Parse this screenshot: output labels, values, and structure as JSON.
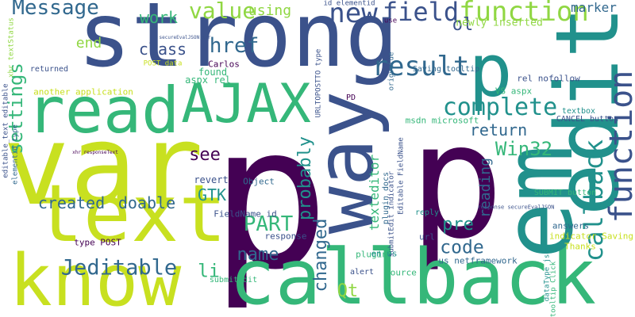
{
  "palette": {
    "background": "#ffffff",
    "dark_purple": "#440154",
    "indigo": "#3b528b",
    "blue": "#31688e",
    "teal": "#21918c",
    "green": "#35b779",
    "lime": "#90d743",
    "yellow": "#c8e020"
  },
  "words": [
    {
      "id": "strong",
      "text": "strong",
      "color": "#3b528b"
    },
    {
      "id": "p-large",
      "text": "p",
      "color": "#440154"
    },
    {
      "id": "p-right",
      "text": "p",
      "color": "#440154"
    },
    {
      "id": "var",
      "text": "var",
      "color": "#c8e020"
    },
    {
      "id": "callback",
      "text": "callback",
      "color": "#35b779"
    },
    {
      "id": "text",
      "text": "text",
      "color": "#c8e020"
    },
    {
      "id": "know",
      "text": "know",
      "color": "#c8e020"
    },
    {
      "id": "edit",
      "text": "edit",
      "color": "#21918c"
    },
    {
      "id": "em",
      "text": "em",
      "color": "#21918c"
    },
    {
      "id": "way",
      "text": "way",
      "color": "#3b528b"
    },
    {
      "id": "read",
      "text": "read",
      "color": "#35b779"
    },
    {
      "id": "ajax",
      "text": "AJAX",
      "color": "#35b779"
    },
    {
      "id": "p-mid",
      "text": "p",
      "color": "#21918c"
    },
    {
      "id": "new",
      "text": "new",
      "color": "#3b528b"
    },
    {
      "id": "function-rot",
      "text": "function",
      "color": "#3b528b"
    },
    {
      "id": "message",
      "text": "Message",
      "color": "#31688e"
    },
    {
      "id": "value",
      "text": "value",
      "color": "#90d743"
    },
    {
      "id": "field",
      "text": "field",
      "color": "#3b528b"
    },
    {
      "id": "function",
      "text": "function",
      "color": "#90d743"
    },
    {
      "id": "jeditable",
      "text": "Jeditable",
      "color": "#31688e"
    },
    {
      "id": "complete",
      "text": "complete",
      "color": "#21918c"
    },
    {
      "id": "result",
      "text": "result",
      "color": "#31688e"
    },
    {
      "id": "callback-rot",
      "text": "callback",
      "color": "#21918c"
    },
    {
      "id": "href",
      "text": "href",
      "color": "#31688e"
    },
    {
      "id": "settings",
      "text": "settings",
      "color": "#35b779"
    },
    {
      "id": "created",
      "text": "created",
      "color": "#31688e"
    },
    {
      "id": "doable",
      "text": "doable",
      "color": "#31688e"
    },
    {
      "id": "win32",
      "text": "Win32",
      "color": "#35b779"
    },
    {
      "id": "code",
      "text": "code",
      "color": "#31688e"
    },
    {
      "id": "part",
      "text": "PART",
      "color": "#35b779"
    },
    {
      "id": "name",
      "text": "name",
      "color": "#31688e"
    },
    {
      "id": "gtk",
      "text": "GTK",
      "color": "#21918c"
    },
    {
      "id": "li",
      "text": "li",
      "color": "#35b779"
    },
    {
      "id": "qt",
      "text": "Qt",
      "color": "#90d743"
    },
    {
      "id": "pre",
      "text": "pre",
      "color": "#21918c"
    },
    {
      "id": "probably",
      "text": "probably",
      "color": "#21918c"
    },
    {
      "id": "changed",
      "text": "changed",
      "color": "#31688e"
    },
    {
      "id": "reading",
      "text": "reading",
      "color": "#31688e"
    },
    {
      "id": "see",
      "text": "see",
      "color": "#440154"
    },
    {
      "id": "class",
      "text": "class",
      "color": "#3b528b"
    },
    {
      "id": "return",
      "text": "return",
      "color": "#31688e"
    },
    {
      "id": "work",
      "text": "work",
      "color": "#35b779"
    },
    {
      "id": "using",
      "text": "using",
      "color": "#90d743"
    },
    {
      "id": "marker",
      "text": "marker",
      "color": "#31688e"
    },
    {
      "id": "ol",
      "text": "ol",
      "color": "#3b528b"
    },
    {
      "id": "end",
      "text": "end",
      "color": "#90d743"
    },
    {
      "id": "texteditor",
      "text": "texteditor",
      "color": "#35b779"
    },
    {
      "id": "newly-inserted",
      "text": "newly inserted",
      "color": "#90d743"
    },
    {
      "id": "saving-tooltip",
      "text": "Saving tooltip",
      "color": "#31688e"
    },
    {
      "id": "vs-aspx",
      "text": "VS aspx",
      "color": "#35b779"
    },
    {
      "id": "rel-nofollow",
      "text": "rel nofollow",
      "color": "#3b528b"
    },
    {
      "id": "pd",
      "text": "PD",
      "color": "#440154"
    },
    {
      "id": "msdn-microsoft",
      "text": "msdn microsoft",
      "color": "#35b779"
    },
    {
      "id": "cancel-button",
      "text": "CANCEL button",
      "color": "#3b528b"
    },
    {
      "id": "textbox",
      "text": "textbox",
      "color": "#21918c"
    },
    {
      "id": "found",
      "text": "found",
      "color": "#35b779"
    },
    {
      "id": "aspx-rel",
      "text": "aspx rel",
      "color": "#35b779"
    },
    {
      "id": "carlos",
      "text": "Carlos",
      "color": "#440154"
    },
    {
      "id": "returned",
      "text": "returned",
      "color": "#3b528b"
    },
    {
      "id": "another-application",
      "text": "another application",
      "color": "#c8e020"
    },
    {
      "id": "post-data",
      "text": "POST data",
      "color": "#c8e020"
    },
    {
      "id": "revert",
      "text": "revert",
      "color": "#3b528b"
    },
    {
      "id": "object",
      "text": "Object",
      "color": "#31688e"
    },
    {
      "id": "fieldname-id",
      "text": "FieldName id",
      "color": "#3b528b"
    },
    {
      "id": "type-post",
      "text": "type POST",
      "color": "#440154"
    },
    {
      "id": "response",
      "text": "response",
      "color": "#3b528b"
    },
    {
      "id": "plugin",
      "text": "plugin",
      "color": "#35b779"
    },
    {
      "id": "plugin-docs",
      "text": "plugin docs",
      "color": "#31688e"
    },
    {
      "id": "reply",
      "text": "reply",
      "color": "#21918c"
    },
    {
      "id": "url",
      "text": "url",
      "color": "#3b528b"
    },
    {
      "id": "answers",
      "text": "answers",
      "color": "#31688e"
    },
    {
      "id": "submit-button",
      "text": "SUBMIT button",
      "color": "#35b779"
    },
    {
      "id": "indicator-saving",
      "text": "indicator Saving",
      "color": "#c8e020"
    },
    {
      "id": "thanks",
      "text": "Thanks",
      "color": "#c8e020"
    },
    {
      "id": "source",
      "text": "source",
      "color": "#35b779"
    },
    {
      "id": "us-netframework",
      "text": "us netframework",
      "color": "#31688e"
    },
    {
      "id": "en-us",
      "text": "en us",
      "color": "#21918c"
    },
    {
      "id": "alert",
      "text": "alert",
      "color": "#3b528b"
    },
    {
      "id": "submitedit",
      "text": "submitEdit",
      "color": "#35b779"
    },
    {
      "id": "editable-text-editable",
      "text": "editable_text editable",
      "color": "#3b528b"
    },
    {
      "id": "elementid-type",
      "text": "elementid type",
      "color": "#31688e"
    },
    {
      "id": "xhr-textstatus",
      "text": "xhr textStatus",
      "color": "#90d743"
    },
    {
      "id": "urltopostto-type",
      "text": "URLTOPOSTTO type",
      "color": "#3b528b"
    },
    {
      "id": "id-elementid",
      "text": "id elementid",
      "color": "#3b528b"
    },
    {
      "id": "origvalue",
      "text": "origvalue",
      "color": "#31688e"
    },
    {
      "id": "submitedit-indicator",
      "text": "submitEdit indicator",
      "color": "#3b528b"
    },
    {
      "id": "editable-fieldname",
      "text": "Editable FieldName",
      "color": "#3b528b"
    },
    {
      "id": "datatype-json",
      "text": "dataType json",
      "color": "#21918c"
    },
    {
      "id": "tooltip-click",
      "text": "tooltip Click",
      "color": "#35b779"
    },
    {
      "id": "use",
      "text": "use",
      "color": "#440154"
    },
    {
      "id": "response-secureevaljson",
      "text": "response secureEvalJSON",
      "color": "#3b528b"
    },
    {
      "id": "secureevaljson-xhr",
      "text": "secureEvalJSON xhr",
      "color": "#3b528b"
    },
    {
      "id": "xhr-responsetext",
      "text": "xhr responseText",
      "color": "#440154"
    }
  ]
}
